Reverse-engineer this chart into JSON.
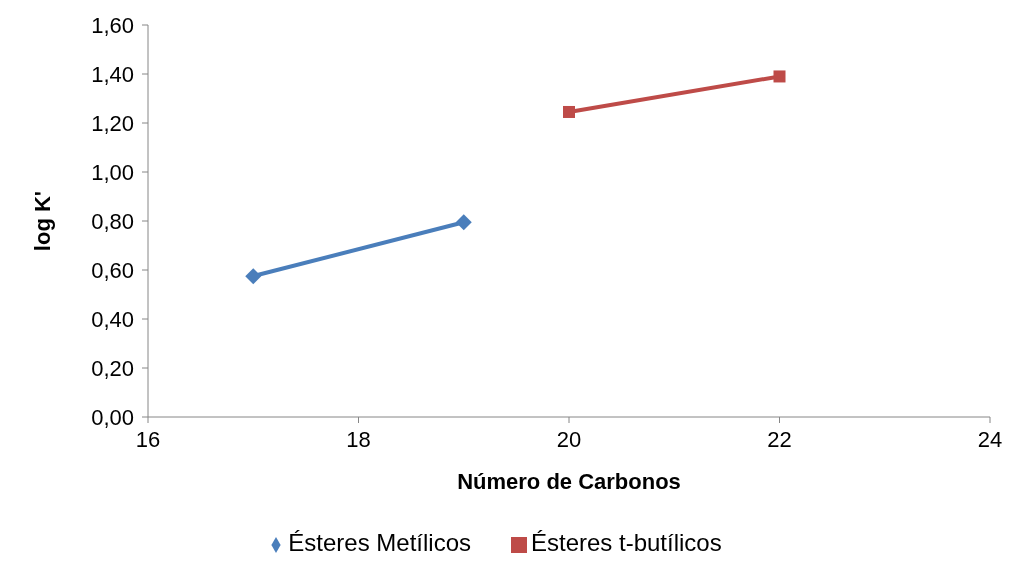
{
  "chart_data": {
    "type": "line",
    "xlabel": "Número de Carbonos",
    "ylabel": "log K'",
    "xlim": [
      16,
      24
    ],
    "xticks": [
      16,
      18,
      20,
      22,
      24
    ],
    "ylim": [
      0,
      1.6
    ],
    "yticks": [
      {
        "value": 0,
        "label": "0,00"
      },
      {
        "value": 0.2,
        "label": "0,20"
      },
      {
        "value": 0.4,
        "label": "0,40"
      },
      {
        "value": 0.6,
        "label": "0,60"
      },
      {
        "value": 0.8,
        "label": "0,80"
      },
      {
        "value": 1.0,
        "label": "1,00"
      },
      {
        "value": 1.2,
        "label": "1,20"
      },
      {
        "value": 1.4,
        "label": "1,40"
      },
      {
        "value": 1.6,
        "label": "1,60"
      }
    ],
    "grid": false,
    "legend": "bottom",
    "series": [
      {
        "name": "Ésteres Metílicos",
        "color": "#4a7ebb",
        "marker": "diamond",
        "x": [
          17,
          19
        ],
        "values": [
          0.575,
          0.795
        ]
      },
      {
        "name": "Ésteres t-butílicos",
        "color": "#be4b48",
        "marker": "square",
        "x": [
          20,
          22
        ],
        "values": [
          1.245,
          1.39
        ]
      }
    ]
  }
}
